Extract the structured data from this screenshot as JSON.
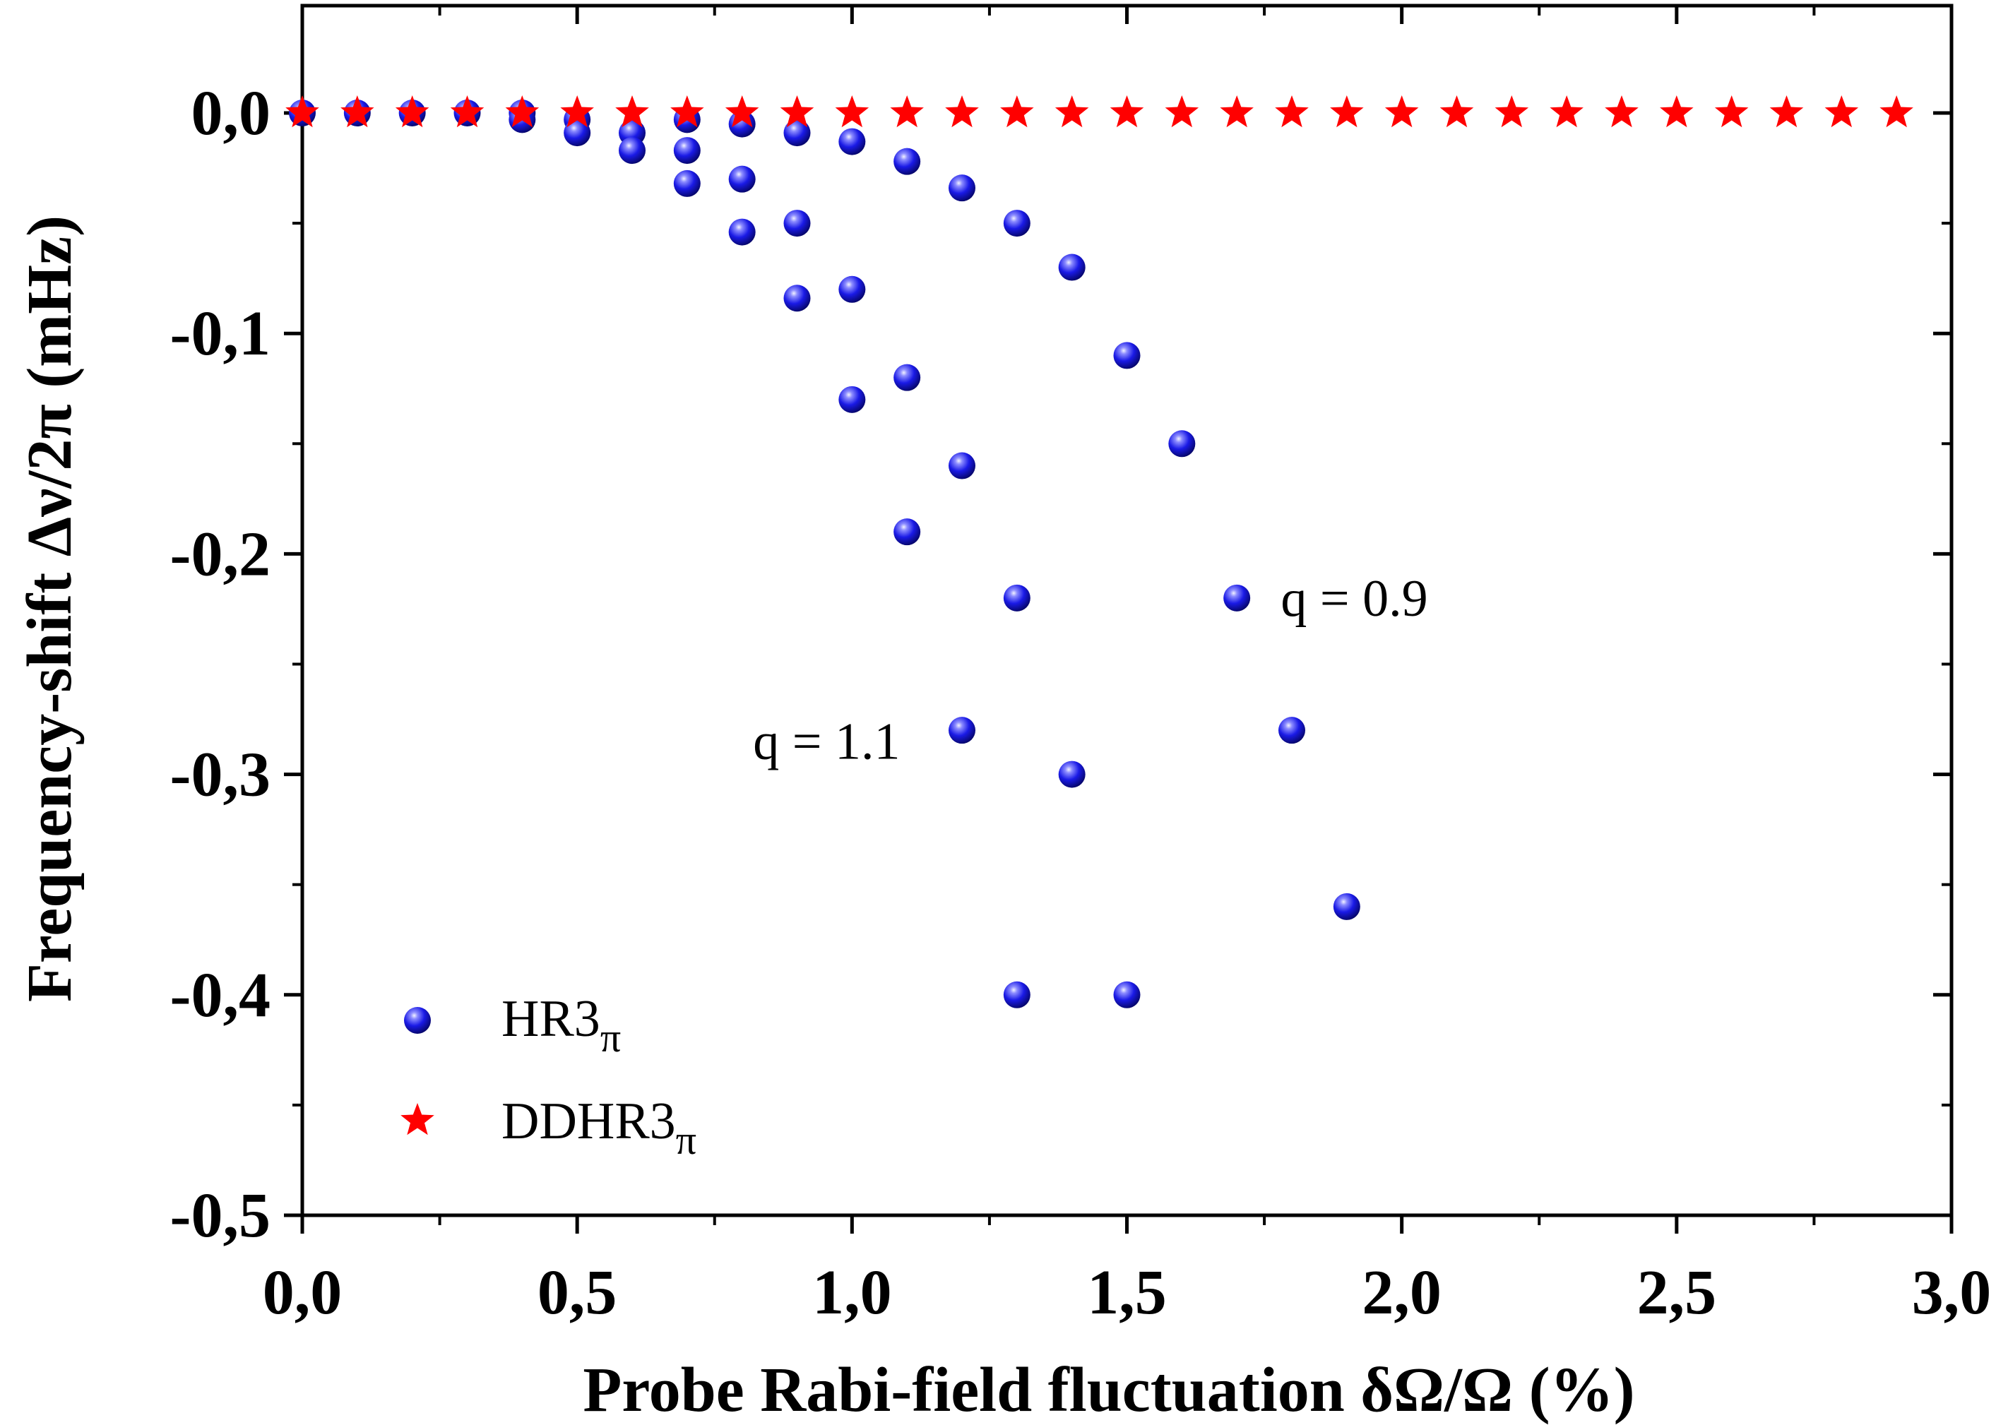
{
  "chart_data": {
    "type": "scatter",
    "title": "",
    "xlabel": "Probe Rabi-field fluctuation  δΩ/Ω (%)",
    "ylabel": "Frequency-shift Δν/2π (mHz)",
    "xlim": [
      0,
      3.0
    ],
    "ylim": [
      -0.5,
      0.05
    ],
    "x_ticks": [
      0,
      0.5,
      1.0,
      1.5,
      2.0,
      2.5,
      3.0
    ],
    "x_tick_labels": [
      "0,0",
      "0,5",
      "1,0",
      "1,5",
      "2,0",
      "2,5",
      "3,0"
    ],
    "y_ticks": [
      0,
      -0.1,
      -0.2,
      -0.3,
      -0.4,
      -0.5
    ],
    "y_tick_labels": [
      "0,0",
      "-0,1",
      "-0,2",
      "-0,3",
      "-0,4",
      "-0,5"
    ],
    "grid": false,
    "legend_position": "bottom-left",
    "series": [
      {
        "name": "HR3",
        "subscript": "π",
        "marker": "sphere",
        "color": "#1010e0",
        "points": [
          [
            0.0,
            0.0
          ],
          [
            0.1,
            0.0
          ],
          [
            0.2,
            0.0
          ],
          [
            0.3,
            0.0
          ],
          [
            0.4,
            0.0
          ],
          [
            0.4,
            -0.003
          ],
          [
            0.5,
            -0.003
          ],
          [
            0.5,
            -0.009
          ],
          [
            0.6,
            -0.009
          ],
          [
            0.6,
            -0.017
          ],
          [
            0.7,
            -0.003
          ],
          [
            0.7,
            -0.017
          ],
          [
            0.7,
            -0.032
          ],
          [
            0.8,
            -0.005
          ],
          [
            0.8,
            -0.03
          ],
          [
            0.8,
            -0.054
          ],
          [
            0.9,
            -0.009
          ],
          [
            0.9,
            -0.05
          ],
          [
            0.9,
            -0.084
          ],
          [
            1.0,
            -0.013
          ],
          [
            1.0,
            -0.08
          ],
          [
            1.0,
            -0.13
          ],
          [
            1.1,
            -0.022
          ],
          [
            1.1,
            -0.12
          ],
          [
            1.1,
            -0.19
          ],
          [
            1.2,
            -0.034
          ],
          [
            1.2,
            -0.16
          ],
          [
            1.2,
            -0.28
          ],
          [
            1.3,
            -0.05
          ],
          [
            1.3,
            -0.22
          ],
          [
            1.3,
            -0.4
          ],
          [
            1.4,
            -0.07
          ],
          [
            1.4,
            -0.3
          ],
          [
            1.5,
            -0.11
          ],
          [
            1.5,
            -0.4
          ],
          [
            1.6,
            -0.15
          ],
          [
            1.7,
            -0.22
          ],
          [
            1.8,
            -0.28
          ],
          [
            1.9,
            -0.36
          ]
        ]
      },
      {
        "name": "DDHR3",
        "subscript": "π",
        "marker": "star",
        "color": "#ff0000",
        "points": [
          [
            0.0,
            0.0
          ],
          [
            0.1,
            0.0
          ],
          [
            0.2,
            0.0
          ],
          [
            0.3,
            0.0
          ],
          [
            0.4,
            0.0
          ],
          [
            0.5,
            0.0
          ],
          [
            0.6,
            0.0
          ],
          [
            0.7,
            0.0
          ],
          [
            0.8,
            0.0
          ],
          [
            0.9,
            0.0
          ],
          [
            1.0,
            0.0
          ],
          [
            1.1,
            0.0
          ],
          [
            1.2,
            0.0
          ],
          [
            1.3,
            0.0
          ],
          [
            1.4,
            0.0
          ],
          [
            1.5,
            0.0
          ],
          [
            1.6,
            0.0
          ],
          [
            1.7,
            0.0
          ],
          [
            1.8,
            0.0
          ],
          [
            1.9,
            0.0
          ],
          [
            2.0,
            0.0
          ],
          [
            2.1,
            0.0
          ],
          [
            2.2,
            0.0
          ],
          [
            2.3,
            0.0
          ],
          [
            2.4,
            0.0
          ],
          [
            2.5,
            0.0
          ],
          [
            2.6,
            0.0
          ],
          [
            2.7,
            0.0
          ],
          [
            2.8,
            0.0
          ],
          [
            2.9,
            0.0
          ]
        ]
      }
    ],
    "annotations": [
      {
        "text": "q = 0.9",
        "x": 1.78,
        "y": -0.228
      },
      {
        "text": "q = 1.1",
        "x": 0.82,
        "y": -0.293
      }
    ]
  }
}
